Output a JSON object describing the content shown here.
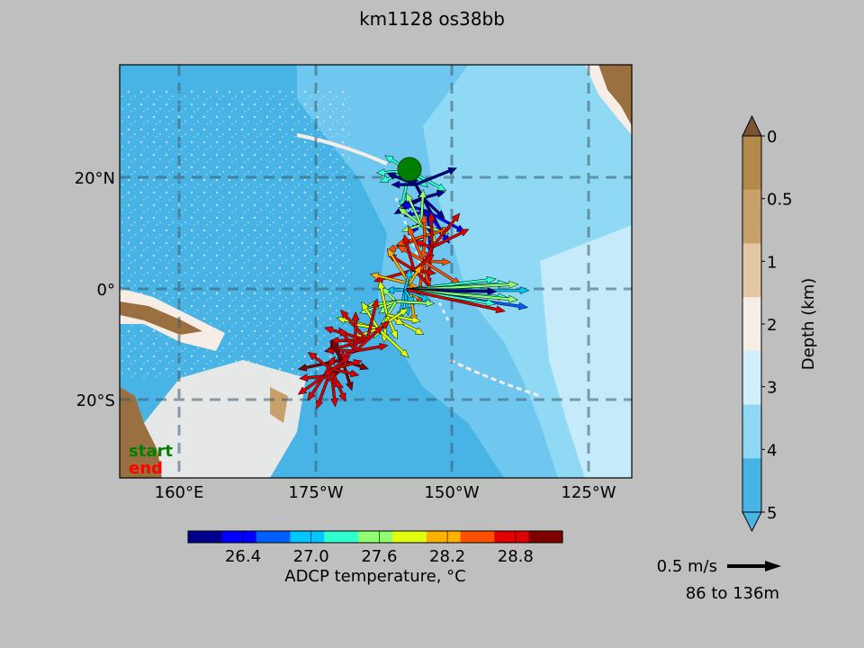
{
  "title": "km1128 os38bb",
  "map": {
    "x_ticks": [
      "160°E",
      "175°W",
      "150°W",
      "125°W"
    ],
    "y_ticks": [
      "20°N",
      "0°",
      "20°S"
    ],
    "legend_start": "start",
    "legend_end": "end",
    "colors": {
      "deep_ocean": "#48b4e6",
      "mid_ocean": "#6fc7ef",
      "shallow_ocean": "#8fd9f5",
      "shelf": "#d2eefb",
      "coast": "#f7ede7",
      "land": "#9a7040",
      "start_marker": "#008000",
      "start_label": "#008000",
      "end_label": "#ff0000"
    }
  },
  "depth_colorbar": {
    "label": "Depth (km)",
    "ticks": [
      "0",
      "0.5",
      "1",
      "2",
      "3",
      "4",
      "5"
    ],
    "colors": [
      "#b48a4a",
      "#c8a06a",
      "#e2c6a6",
      "#f7ede7",
      "#d2eefb",
      "#8fd9f5",
      "#48b4e6"
    ],
    "extend_top_color": "#7a5432",
    "extend_bottom_color": "#48b4e6"
  },
  "temperature_colorbar": {
    "label": "ADCP temperature, °C",
    "ticks": [
      "26.4",
      "27.0",
      "27.6",
      "28.2",
      "28.8"
    ],
    "colors": [
      "#00008f",
      "#0000ff",
      "#0060ff",
      "#00c8ff",
      "#30ffcf",
      "#90ff70",
      "#e0ff10",
      "#ffb000",
      "#ff5000",
      "#e00000",
      "#800000"
    ]
  },
  "scale_arrow": {
    "label": "0.5 m/s",
    "depth_range": "86 to 136m"
  }
}
